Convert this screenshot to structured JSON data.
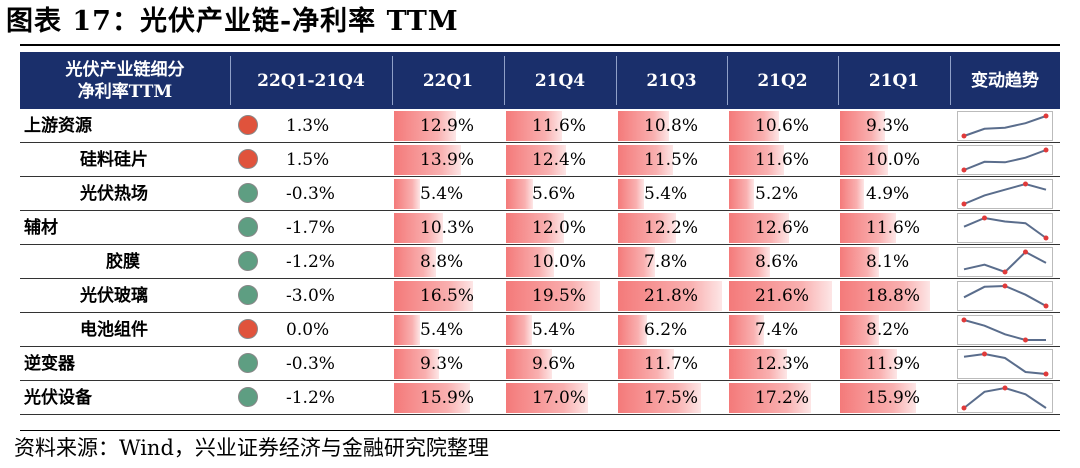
{
  "title": "图表 17：光伏产业链-净利率 TTM",
  "source": "资料来源：Wind，兴业证券经济与金融研究院整理",
  "colors": {
    "header_bg": "#1a2f6b",
    "dot_up": "#e0533c",
    "dot_down": "#5e9e82",
    "bar": "#f47a7a",
    "spark_line": "#5a6d8c",
    "spark_end": "#e03a3a"
  },
  "chart_data": {
    "type": "table",
    "columns": [
      "光伏产业链细分\n净利率TTM",
      "22Q1-21Q4",
      "22Q1",
      "21Q4",
      "21Q3",
      "21Q2",
      "21Q1",
      "变动趋势"
    ],
    "rows": [
      {
        "name": "上游资源",
        "level": 0,
        "direction": "up",
        "change": "1.3%",
        "values": [
          12.9,
          11.6,
          10.8,
          10.6,
          9.3
        ],
        "labels": [
          "12.9%",
          "11.6%",
          "10.8%",
          "10.6%",
          "9.3%"
        ]
      },
      {
        "name": "硅料硅片",
        "level": 1,
        "direction": "up",
        "change": "1.5%",
        "values": [
          13.9,
          12.4,
          11.5,
          11.6,
          10.0
        ],
        "labels": [
          "13.9%",
          "12.4%",
          "11.5%",
          "11.6%",
          "10.0%"
        ]
      },
      {
        "name": "光伏热场",
        "level": 1,
        "direction": "down",
        "change": "-0.3%",
        "values": [
          5.4,
          5.6,
          5.4,
          5.2,
          4.9
        ],
        "labels": [
          "5.4%",
          "5.6%",
          "5.4%",
          "5.2%",
          "4.9%"
        ]
      },
      {
        "name": "辅材",
        "level": 0,
        "direction": "down",
        "change": "-1.7%",
        "values": [
          10.3,
          12.0,
          12.2,
          12.6,
          11.6
        ],
        "labels": [
          "10.3%",
          "12.0%",
          "12.2%",
          "12.6%",
          "11.6%"
        ]
      },
      {
        "name": "胶膜",
        "level": 2,
        "direction": "down",
        "change": "-1.2%",
        "values": [
          8.8,
          10.0,
          7.8,
          8.6,
          8.1
        ],
        "labels": [
          "8.8%",
          "10.0%",
          "7.8%",
          "8.6%",
          "8.1%"
        ]
      },
      {
        "name": "光伏玻璃",
        "level": 1,
        "direction": "down",
        "change": "-3.0%",
        "values": [
          16.5,
          19.5,
          21.8,
          21.6,
          18.8
        ],
        "labels": [
          "16.5%",
          "19.5%",
          "21.8%",
          "21.6%",
          "18.8%"
        ]
      },
      {
        "name": "电池组件",
        "level": 1,
        "direction": "up",
        "change": "0.0%",
        "values": [
          5.4,
          5.4,
          6.2,
          7.4,
          8.2
        ],
        "labels": [
          "5.4%",
          "5.4%",
          "6.2%",
          "7.4%",
          "8.2%"
        ]
      },
      {
        "name": "逆变器",
        "level": 0,
        "direction": "down",
        "change": "-0.3%",
        "values": [
          9.3,
          9.6,
          11.7,
          12.3,
          11.9
        ],
        "labels": [
          "9.3%",
          "9.6%",
          "11.7%",
          "12.3%",
          "11.9%"
        ]
      },
      {
        "name": "光伏设备",
        "level": 0,
        "direction": "down",
        "change": "-1.2%",
        "values": [
          15.9,
          17.0,
          17.5,
          17.2,
          15.9
        ],
        "labels": [
          "15.9%",
          "17.0%",
          "17.5%",
          "17.2%",
          "15.9%"
        ]
      }
    ]
  }
}
